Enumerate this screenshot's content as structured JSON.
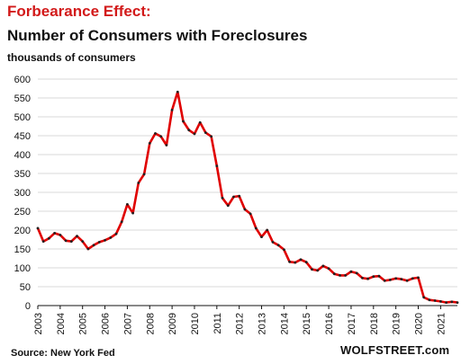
{
  "header": {
    "title_red": "Forbearance Effect:",
    "title_main": "Number  of Consumers with Foreclosures",
    "subtitle": "thousands of consumers"
  },
  "footer": {
    "source": "Source: New York Fed",
    "brand": "WOLFSTREET.com"
  },
  "colors": {
    "line": "#e00000",
    "markers": "#222222",
    "grid": "#d9d9d9",
    "title_accent": "#d21a1a"
  },
  "chart_data": {
    "type": "line",
    "title": "Number  of Consumers with Foreclosures",
    "subtitle": "thousands of consumers",
    "ylim": [
      0,
      600
    ],
    "yticks": [
      0,
      50,
      100,
      150,
      200,
      250,
      300,
      350,
      400,
      450,
      500,
      550,
      600
    ],
    "xlim": [
      2003.0,
      2021.75
    ],
    "xticks": [
      "2003",
      "2004",
      "2005",
      "2006",
      "2007",
      "2008",
      "2009",
      "2010",
      "2011",
      "2012",
      "2013",
      "2014",
      "2015",
      "2016",
      "2017",
      "2018",
      "2019",
      "2020",
      "2021"
    ],
    "grid": "horizontal",
    "series": [
      {
        "values": [
          [
            2003.0,
            205
          ],
          [
            2003.25,
            170
          ],
          [
            2003.5,
            178
          ],
          [
            2003.75,
            192
          ],
          [
            2004.0,
            187
          ],
          [
            2004.25,
            172
          ],
          [
            2004.5,
            170
          ],
          [
            2004.75,
            184
          ],
          [
            2005.0,
            170
          ],
          [
            2005.25,
            150
          ],
          [
            2005.5,
            160
          ],
          [
            2005.75,
            168
          ],
          [
            2006.0,
            173
          ],
          [
            2006.25,
            180
          ],
          [
            2006.5,
            190
          ],
          [
            2006.75,
            222
          ],
          [
            2007.0,
            268
          ],
          [
            2007.25,
            245
          ],
          [
            2007.5,
            325
          ],
          [
            2007.75,
            348
          ],
          [
            2008.0,
            430
          ],
          [
            2008.25,
            456
          ],
          [
            2008.5,
            448
          ],
          [
            2008.75,
            425
          ],
          [
            2009.0,
            518
          ],
          [
            2009.25,
            566
          ],
          [
            2009.5,
            488
          ],
          [
            2009.75,
            465
          ],
          [
            2010.0,
            455
          ],
          [
            2010.25,
            485
          ],
          [
            2010.5,
            458
          ],
          [
            2010.75,
            448
          ],
          [
            2011.0,
            370
          ],
          [
            2011.25,
            285
          ],
          [
            2011.5,
            265
          ],
          [
            2011.75,
            288
          ],
          [
            2012.0,
            290
          ],
          [
            2012.25,
            255
          ],
          [
            2012.5,
            243
          ],
          [
            2012.75,
            205
          ],
          [
            2013.0,
            182
          ],
          [
            2013.25,
            200
          ],
          [
            2013.5,
            168
          ],
          [
            2013.75,
            160
          ],
          [
            2014.0,
            148
          ],
          [
            2014.25,
            116
          ],
          [
            2014.5,
            114
          ],
          [
            2014.75,
            122
          ],
          [
            2015.0,
            115
          ],
          [
            2015.25,
            96
          ],
          [
            2015.5,
            93
          ],
          [
            2015.75,
            105
          ],
          [
            2016.0,
            98
          ],
          [
            2016.25,
            84
          ],
          [
            2016.5,
            80
          ],
          [
            2016.75,
            80
          ],
          [
            2017.0,
            90
          ],
          [
            2017.25,
            86
          ],
          [
            2017.5,
            73
          ],
          [
            2017.75,
            71
          ],
          [
            2018.0,
            77
          ],
          [
            2018.25,
            78
          ],
          [
            2018.5,
            66
          ],
          [
            2018.75,
            68
          ],
          [
            2019.0,
            72
          ],
          [
            2019.25,
            70
          ],
          [
            2019.5,
            66
          ],
          [
            2019.75,
            72
          ],
          [
            2020.0,
            74
          ],
          [
            2020.25,
            22
          ],
          [
            2020.5,
            15
          ],
          [
            2020.75,
            13
          ],
          [
            2021.0,
            11
          ],
          [
            2021.25,
            8
          ],
          [
            2021.5,
            10
          ],
          [
            2021.75,
            8
          ]
        ]
      }
    ]
  }
}
